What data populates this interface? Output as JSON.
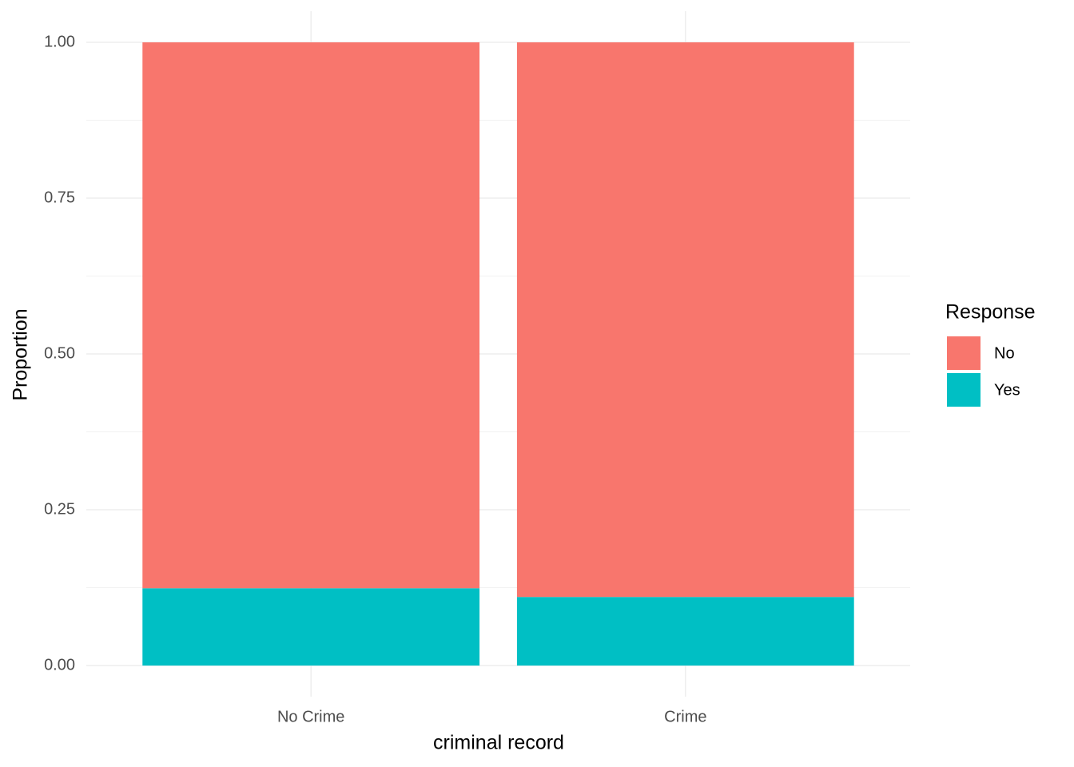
{
  "chart_data": {
    "type": "stacked_bar",
    "x_label": "criminal record",
    "y_label": "Proportion",
    "categories": [
      "No Crime",
      "Crime"
    ],
    "series": [
      {
        "name": "No",
        "color": "#f8766d",
        "values": [
          0.876,
          0.89
        ]
      },
      {
        "name": "Yes",
        "color": "#00bfc4",
        "values": [
          0.124,
          0.11
        ]
      }
    ],
    "stack_order": "last_at_bottom",
    "legend_title": "Response",
    "legend_position": "right",
    "ylim": [
      -0.05,
      1.05
    ],
    "yticks": [
      {
        "value": 0,
        "label": "0.00"
      },
      {
        "value": 0.25,
        "label": "0.25"
      },
      {
        "value": 0.5,
        "label": "0.50"
      },
      {
        "value": 0.75,
        "label": "0.75"
      },
      {
        "value": 1,
        "label": "1.00"
      }
    ],
    "grid": true,
    "minor_grid": true
  }
}
